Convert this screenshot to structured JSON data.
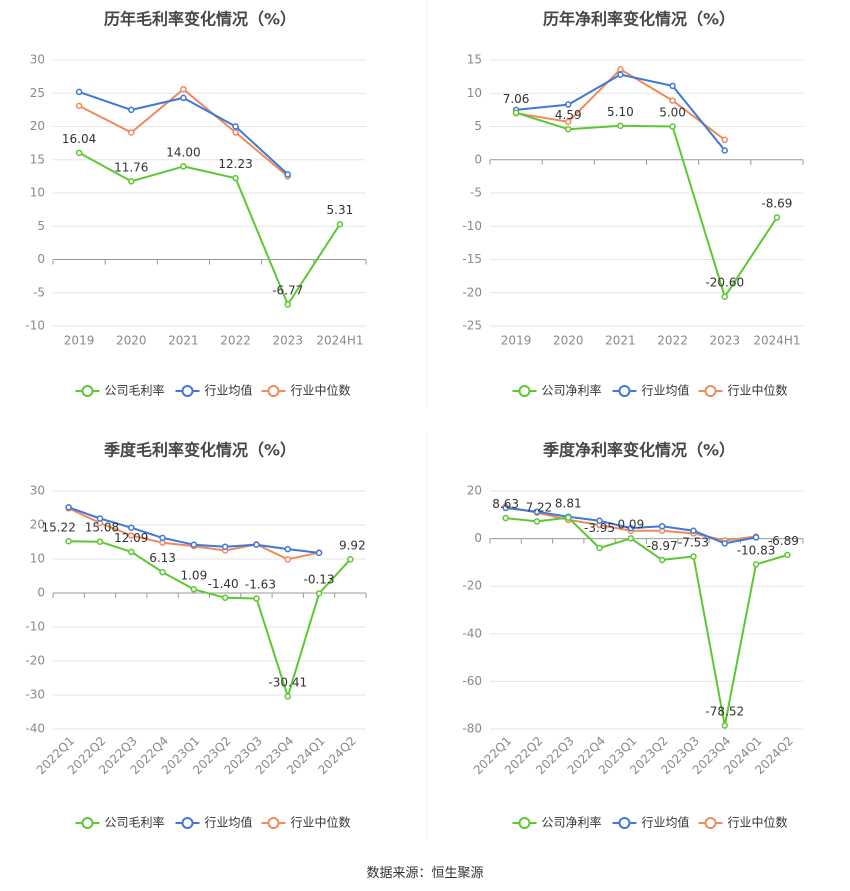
{
  "source_label": "数据来源：恒生聚源",
  "colors": {
    "company": "#5cc832",
    "industry_avg": "#3f78db",
    "industry_median": "#f2895b",
    "grid": "#e6e6e6",
    "axis": "#c7c7c7",
    "tick": "#8a8a8a",
    "title": "#464646",
    "label": "#333333"
  },
  "chart_data": [
    {
      "type": "line",
      "title": "历年毛利率变化情况（%）",
      "categories": [
        "2019",
        "2020",
        "2021",
        "2022",
        "2023",
        "2024H1"
      ],
      "ylim": [
        -10,
        30
      ],
      "yticks": [
        30,
        25,
        20,
        15,
        10,
        5,
        0,
        -5,
        -10
      ],
      "rotate_x": false,
      "legend": "bottom",
      "series": [
        {
          "name": "公司毛利率",
          "key": "company",
          "values": [
            16.04,
            11.76,
            14.0,
            12.23,
            -6.77,
            5.31
          ],
          "labels": [
            "16.04",
            "11.76",
            "14.00",
            "12.23",
            "-6.77",
            "5.31"
          ]
        },
        {
          "name": "行业均值",
          "key": "industry_avg",
          "values": [
            25.2,
            22.5,
            24.3,
            20.0,
            12.8,
            null
          ]
        },
        {
          "name": "行业中位数",
          "key": "industry_median",
          "values": [
            23.1,
            19.1,
            25.6,
            19.1,
            12.5,
            null
          ]
        }
      ]
    },
    {
      "type": "line",
      "title": "历年净利率变化情况（%）",
      "categories": [
        "2019",
        "2020",
        "2021",
        "2022",
        "2023",
        "2024H1"
      ],
      "ylim": [
        -25,
        15
      ],
      "yticks": [
        15,
        10,
        5,
        0,
        -5,
        -10,
        -15,
        -20,
        -25
      ],
      "rotate_x": false,
      "legend": "bottom",
      "series": [
        {
          "name": "公司净利率",
          "key": "company",
          "values": [
            7.06,
            4.59,
            5.1,
            5.0,
            -20.6,
            -8.69
          ],
          "labels": [
            "7.06",
            "4.59",
            "5.10",
            "5.00",
            "-20.60",
            "-8.69"
          ]
        },
        {
          "name": "行业均值",
          "key": "industry_avg",
          "values": [
            7.5,
            8.3,
            12.8,
            11.1,
            1.4,
            null
          ]
        },
        {
          "name": "行业中位数",
          "key": "industry_median",
          "values": [
            7.0,
            5.7,
            13.6,
            8.9,
            3.0,
            null
          ]
        }
      ]
    },
    {
      "type": "line",
      "title": "季度毛利率变化情况（%）",
      "categories": [
        "2022Q1",
        "2022Q2",
        "2022Q3",
        "2022Q4",
        "2023Q1",
        "2023Q2",
        "2023Q3",
        "2023Q4",
        "2024Q1",
        "2024Q2"
      ],
      "ylim": [
        -40,
        30
      ],
      "yticks": [
        30,
        20,
        10,
        0,
        -10,
        -20,
        -30,
        -40
      ],
      "rotate_x": true,
      "legend": "bottom",
      "series": [
        {
          "name": "公司毛利率",
          "key": "company",
          "values": [
            15.22,
            15.08,
            12.09,
            6.13,
            1.09,
            -1.4,
            -1.63,
            -30.41,
            -0.13,
            9.92
          ],
          "labels": [
            "15.22",
            "15.08",
            "12.09",
            "6.13",
            "1.09",
            "-1.40",
            "-1.63",
            "-30.41",
            "-0.13",
            "9.92"
          ]
        },
        {
          "name": "行业均值",
          "key": "industry_avg",
          "values": [
            25.2,
            21.9,
            19.2,
            16.2,
            14.2,
            13.6,
            14.2,
            12.9,
            11.8,
            null
          ]
        },
        {
          "name": "行业中位数",
          "key": "industry_median",
          "values": [
            24.9,
            20.6,
            16.9,
            14.8,
            13.8,
            12.5,
            14.3,
            9.9,
            11.9,
            null
          ]
        }
      ]
    },
    {
      "type": "line",
      "title": "季度净利率变化情况（%）",
      "categories": [
        "2022Q1",
        "2022Q2",
        "2022Q3",
        "2022Q4",
        "2023Q1",
        "2023Q2",
        "2023Q3",
        "2023Q4",
        "2024Q1",
        "2024Q2"
      ],
      "ylim": [
        -80,
        20
      ],
      "yticks": [
        20,
        0,
        -20,
        -40,
        -60,
        -80
      ],
      "rotate_x": true,
      "legend": "bottom",
      "series": [
        {
          "name": "公司净利率",
          "key": "company",
          "values": [
            8.63,
            7.22,
            8.81,
            -3.95,
            0.09,
            -8.97,
            -7.53,
            -78.52,
            -10.83,
            -6.89
          ],
          "labels": [
            "8.63",
            "7.22",
            "8.81",
            "-3.95",
            "0.09",
            "-8.97",
            "-7.53",
            "-78.52",
            "-10.83",
            "-6.89"
          ]
        },
        {
          "name": "行业均值",
          "key": "industry_avg",
          "values": [
            12.9,
            11.3,
            9.2,
            7.5,
            4.4,
            5.2,
            3.3,
            -2.0,
            0.5,
            null
          ]
        },
        {
          "name": "行业中位数",
          "key": "industry_median",
          "values": [
            13.4,
            10.9,
            7.9,
            5.7,
            3.3,
            3.3,
            2.2,
            -0.8,
            0.9,
            null
          ]
        }
      ]
    }
  ]
}
